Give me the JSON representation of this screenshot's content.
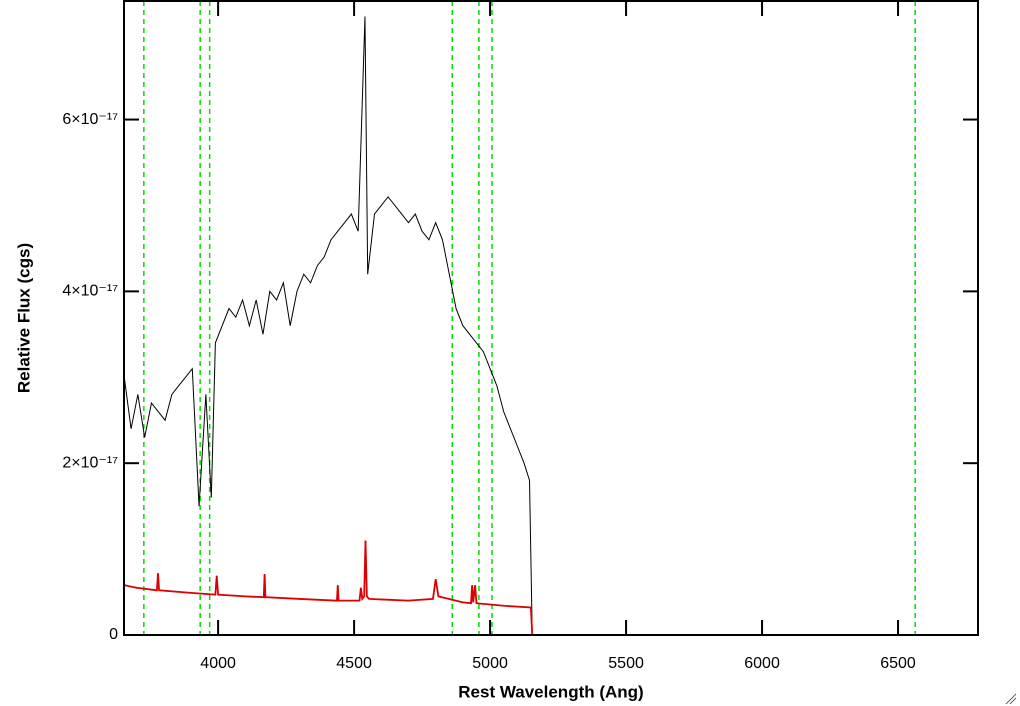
{
  "chart_data": {
    "type": "line",
    "xlabel": "Rest Wavelength (Ang)",
    "ylabel": "Relative Flux (cgs)",
    "xlim": [
      3654,
      6794
    ],
    "ylim": [
      0,
      7.38e-17
    ],
    "xticks": [
      4000,
      4500,
      5000,
      5500,
      6000,
      6500
    ],
    "yticks": [
      0,
      {
        "value": 2e-17,
        "label": "2×10⁻¹⁷"
      },
      {
        "value": 4e-17,
        "label": "4×10⁻¹⁷"
      },
      {
        "value": 6e-17,
        "label": "6×10⁻¹⁷"
      }
    ],
    "vlines": {
      "color": "#00dd00",
      "x": [
        3727,
        3934,
        3969,
        4861,
        4959,
        5007,
        6563
      ]
    },
    "series": [
      {
        "color": "#000000",
        "x": [
          3655,
          3680,
          3705,
          3730,
          3755,
          3780,
          3805,
          3830,
          3855,
          3880,
          3905,
          3930,
          3955,
          3975,
          3990,
          4015,
          4040,
          4065,
          4090,
          4115,
          4140,
          4165,
          4190,
          4215,
          4240,
          4265,
          4290,
          4315,
          4340,
          4365,
          4390,
          4415,
          4440,
          4465,
          4490,
          4515,
          4540,
          4550,
          4575,
          4600,
          4625,
          4650,
          4675,
          4700,
          4725,
          4750,
          4775,
          4800,
          4825,
          4850,
          4875,
          4900,
          4925,
          4950,
          4975,
          5000,
          5025,
          5050,
          5075,
          5100,
          5125,
          5145,
          5155
        ],
        "values": [
          3e-17,
          2.4e-17,
          2.8e-17,
          2.3e-17,
          2.7e-17,
          2.6e-17,
          2.5e-17,
          2.8e-17,
          2.9e-17,
          3e-17,
          3.1e-17,
          1.5e-17,
          2.8e-17,
          1.6e-17,
          3.4e-17,
          3.6e-17,
          3.8e-17,
          3.7e-17,
          3.9e-17,
          3.6e-17,
          3.9e-17,
          3.5e-17,
          4e-17,
          3.9e-17,
          4.1e-17,
          3.6e-17,
          4e-17,
          4.2e-17,
          4.1e-17,
          4.3e-17,
          4.4e-17,
          4.6e-17,
          4.7e-17,
          4.8e-17,
          4.9e-17,
          4.7e-17,
          7.2e-17,
          4.2e-17,
          4.9e-17,
          5e-17,
          5.1e-17,
          5e-17,
          4.9e-17,
          4.8e-17,
          4.9e-17,
          4.7e-17,
          4.6e-17,
          4.8e-17,
          4.6e-17,
          4.2e-17,
          3.8e-17,
          3.6e-17,
          3.5e-17,
          3.4e-17,
          3.3e-17,
          3.1e-17,
          2.9e-17,
          2.6e-17,
          2.4e-17,
          2.2e-17,
          2e-17,
          1.8e-17,
          0
        ]
      },
      {
        "color": "#dd0000",
        "x": [
          3655,
          3700,
          3775,
          3779,
          3783,
          3900,
          3990,
          3995,
          4000,
          4100,
          4168,
          4171,
          4174,
          4300,
          4437,
          4440,
          4443,
          4520,
          4525,
          4530,
          4537,
          4542,
          4547,
          4555,
          4700,
          4790,
          4800,
          4810,
          4900,
          4930,
          4934,
          4938,
          4945,
          4950,
          5050,
          5150,
          5155,
          6794
        ],
        "values": [
          5.8e-18,
          5.5e-18,
          5.2e-18,
          7.2e-18,
          5.2e-18,
          4.9e-18,
          4.7e-18,
          6.9e-18,
          4.7e-18,
          4.5e-18,
          4.4e-18,
          7.1e-18,
          4.4e-18,
          4.2e-18,
          4e-18,
          5.8e-18,
          4e-18,
          4e-18,
          5.5e-18,
          4.2e-18,
          4.5e-18,
          1.1e-17,
          4.5e-18,
          4.2e-18,
          4e-18,
          4.2e-18,
          6.5e-18,
          4.5e-18,
          3.8e-18,
          3.7e-18,
          5.8e-18,
          3.8e-18,
          5.8e-18,
          3.7e-18,
          3.4e-18,
          3.2e-18,
          0,
          0
        ]
      }
    ]
  }
}
